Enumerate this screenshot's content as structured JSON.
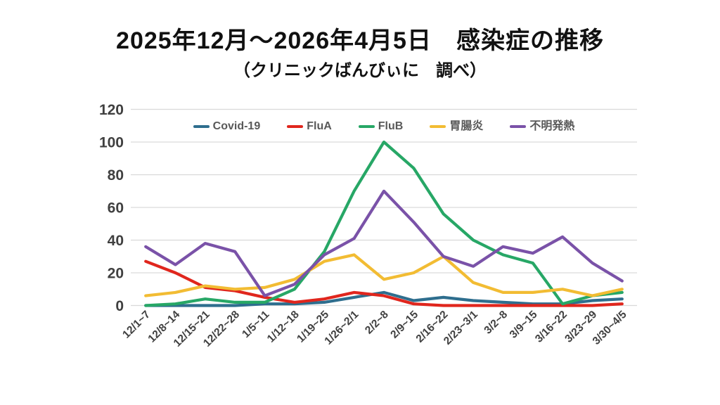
{
  "page": {
    "background": "#ffffff"
  },
  "header": {
    "title": "2025年12月～2026年4月5日　感染症の推移",
    "subtitle": "（クリニックばんびぃに　調べ）"
  },
  "chart_data": {
    "type": "line",
    "title": "2025年12月～2026年4月5日　感染症の推移",
    "subtitle": "（クリニックばんびぃに　調べ）",
    "categories": [
      "12/1~7",
      "12/8~14",
      "12/15~21",
      "12/22~28",
      "1/5~11",
      "1/12~18",
      "1/19~25",
      "1/26~2/1",
      "2/2~8",
      "2/9~15",
      "2/16~22",
      "2/23~3/1",
      "3/2~8",
      "3/9~15",
      "3/16~22",
      "3/23~29",
      "3/30~4/5"
    ],
    "series": [
      {
        "name": "Covid-19",
        "color": "#2e6e8e",
        "values": [
          0,
          0,
          0,
          0,
          1,
          1,
          2,
          5,
          8,
          3,
          5,
          3,
          2,
          1,
          1,
          3,
          4
        ]
      },
      {
        "name": "FluA",
        "color": "#e0261d",
        "values": [
          27,
          20,
          11,
          9,
          5,
          2,
          4,
          8,
          6,
          1,
          0,
          0,
          0,
          0,
          0,
          0,
          1
        ]
      },
      {
        "name": "FluB",
        "color": "#27a766",
        "values": [
          0,
          1,
          4,
          2,
          2,
          10,
          33,
          70,
          100,
          84,
          56,
          40,
          31,
          26,
          1,
          6,
          8
        ]
      },
      {
        "name": "胃腸炎",
        "color": "#f2bc33",
        "values": [
          6,
          8,
          12,
          10,
          11,
          16,
          27,
          31,
          16,
          20,
          30,
          14,
          8,
          8,
          10,
          6,
          10
        ]
      },
      {
        "name": "不明発熱",
        "color": "#7a52a8",
        "values": [
          36,
          25,
          38,
          33,
          6,
          13,
          31,
          41,
          70,
          51,
          30,
          24,
          36,
          32,
          42,
          26,
          15
        ]
      }
    ],
    "xlabel": "",
    "ylabel": "",
    "ylim": [
      0,
      120
    ],
    "yticks": [
      0,
      20,
      40,
      60,
      80,
      100,
      120
    ],
    "grid": "horizontal",
    "gridline_color": "#d9d9d9",
    "axis_label_color": "#404040",
    "legend_position": "top-center"
  }
}
